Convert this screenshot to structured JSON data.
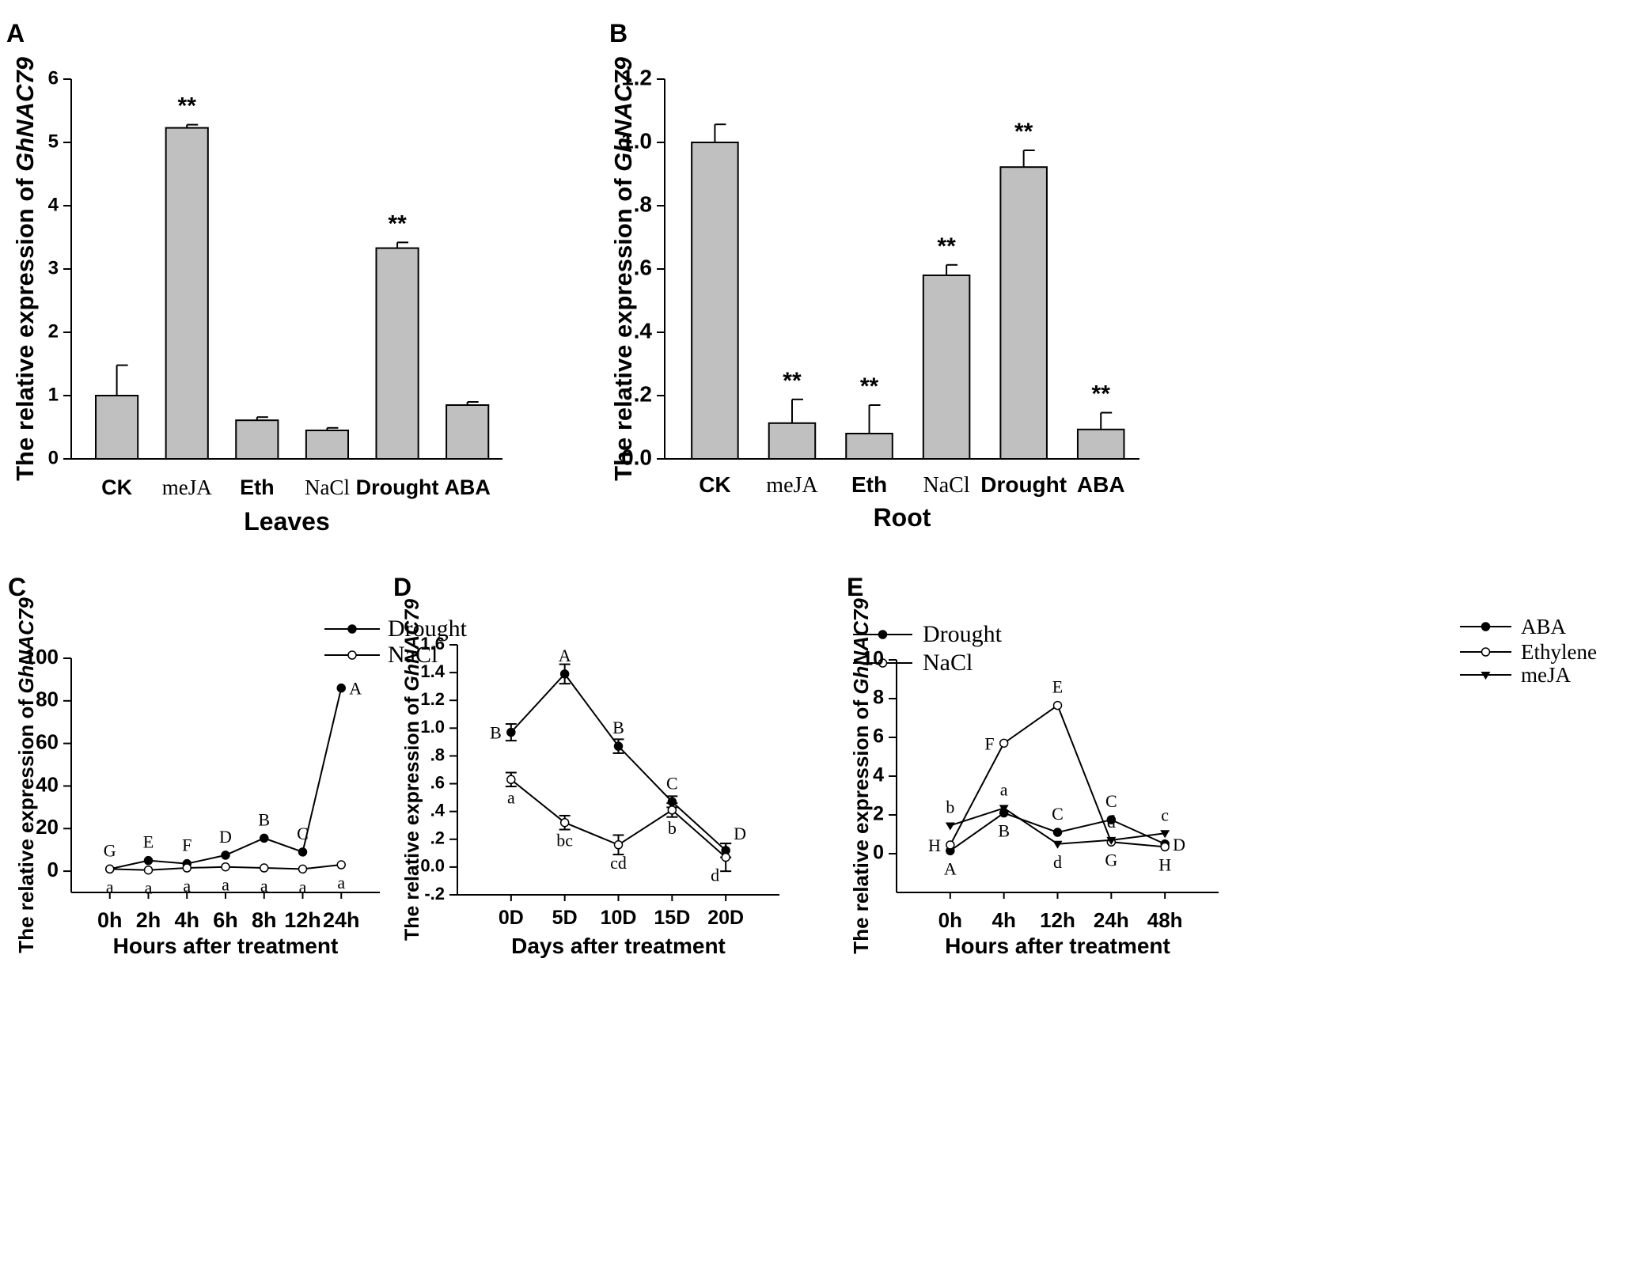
{
  "chart_data": [
    {
      "id": "A",
      "type": "bar",
      "panel_label": "A",
      "title": "",
      "xlabel": "Leaves",
      "ylabel_prefix": "The relative expression of ",
      "ylabel_gene": "GhNAC79",
      "categories": [
        "CK",
        "meJA",
        "Eth",
        "NaCl",
        "Drought",
        "ABA"
      ],
      "category_fonts": [
        "sans",
        "serif",
        "sans",
        "serif",
        "sans",
        "sans"
      ],
      "values": [
        1.0,
        5.23,
        0.61,
        0.45,
        3.33,
        0.85
      ],
      "errors": [
        0.48,
        0.05,
        0.05,
        0.04,
        0.09,
        0.05
      ],
      "annotations": [
        "",
        "**",
        "",
        "",
        "**",
        ""
      ],
      "ylim": [
        0,
        6
      ],
      "yticks": [
        0,
        1,
        2,
        3,
        4,
        5,
        6
      ],
      "ytick_labels": [
        "0",
        "1",
        "2",
        "3",
        "4",
        "5",
        "6"
      ]
    },
    {
      "id": "B",
      "type": "bar",
      "panel_label": "B",
      "title": "",
      "xlabel": "Root",
      "ylabel_prefix": "The relative expression of ",
      "ylabel_gene": "GhNAC79",
      "categories": [
        "CK",
        "meJA",
        "Eth",
        "NaCl",
        "Drought",
        "ABA"
      ],
      "category_fonts": [
        "sans",
        "serif",
        "sans",
        "serif",
        "sans",
        "sans"
      ],
      "values": [
        1.0,
        0.113,
        0.08,
        0.58,
        0.922,
        0.093
      ],
      "errors": [
        0.057,
        0.075,
        0.09,
        0.033,
        0.053,
        0.053
      ],
      "annotations": [
        "",
        "**",
        "**",
        "**",
        "**",
        "**"
      ],
      "ylim": [
        0,
        1.2
      ],
      "yticks": [
        0,
        0.2,
        0.4,
        0.6,
        0.8,
        1.0,
        1.2
      ],
      "ytick_labels": [
        "0.0",
        ".2",
        ".4",
        ".6",
        ".8",
        "1.0",
        "1.2"
      ]
    },
    {
      "id": "C",
      "type": "line",
      "panel_label": "C",
      "xlabel": "Hours after treatment",
      "ylabel_prefix": "The relative expression of ",
      "ylabel_gene": "GhNAC79",
      "categories": [
        "0h",
        "2h",
        "4h",
        "6h",
        "8h",
        "12h",
        "24h"
      ],
      "ylim": [
        -10,
        100
      ],
      "yticks": [
        0,
        20,
        40,
        60,
        80,
        100
      ],
      "ytick_labels": [
        "0",
        "20",
        "40",
        "60",
        "80",
        "100"
      ],
      "legend": [
        "Drought",
        "NaCl"
      ],
      "series": [
        {
          "name": "Drought",
          "marker": "filled-circle",
          "values": [
            1,
            5,
            3.5,
            7.5,
            15.5,
            9,
            86
          ],
          "errors": [
            0,
            0,
            0,
            0,
            0,
            0,
            0
          ],
          "letters": [
            "G",
            "E",
            "F",
            "D",
            "B",
            "C",
            "A"
          ],
          "letter_side": [
            "above",
            "above",
            "above",
            "above",
            "above",
            "above",
            "right"
          ]
        },
        {
          "name": "NaCl",
          "marker": "open-circle",
          "values": [
            1,
            0.5,
            1.5,
            2,
            1.5,
            1,
            3
          ],
          "errors": [
            0,
            0,
            0,
            0,
            0,
            0,
            0
          ],
          "letters": [
            "a",
            "a",
            "a",
            "a",
            "a",
            "a",
            "a"
          ],
          "letter_side": [
            "below",
            "below",
            "below",
            "below",
            "below",
            "below",
            "below"
          ]
        }
      ]
    },
    {
      "id": "D",
      "type": "line",
      "panel_label": "D",
      "xlabel": "Days after treatment",
      "ylabel_prefix": "The relative expression of ",
      "ylabel_gene": "GhNAC79",
      "categories": [
        "0D",
        "5D",
        "10D",
        "15D",
        "20D"
      ],
      "ylim": [
        -0.2,
        1.6
      ],
      "yticks": [
        -0.2,
        0.0,
        0.2,
        0.4,
        0.6,
        0.8,
        1.0,
        1.2,
        1.4,
        1.6
      ],
      "ytick_labels": [
        "-.2",
        "0.0",
        ".2",
        ".4",
        ".6",
        ".8",
        "1.0",
        "1.2",
        "1.4",
        "1.6"
      ],
      "legend": [
        "Drought",
        "NaCl"
      ],
      "series": [
        {
          "name": "Drought",
          "marker": "filled-circle",
          "values": [
            0.97,
            1.39,
            0.87,
            0.47,
            0.12
          ],
          "errors": [
            0.06,
            0.07,
            0.05,
            0.04,
            0.05
          ],
          "letters": [
            "B",
            "A",
            "B",
            "C",
            "D"
          ],
          "letter_side": [
            "left",
            "above",
            "above",
            "above",
            "above-right"
          ]
        },
        {
          "name": "NaCl",
          "marker": "open-circle",
          "values": [
            0.63,
            0.32,
            0.16,
            0.41,
            0.07
          ],
          "errors": [
            0.05,
            0.05,
            0.07,
            0.05,
            0.1
          ],
          "letters": [
            "a",
            "bc",
            "cd",
            "b",
            "d"
          ],
          "letter_side": [
            "below",
            "below",
            "below",
            "below",
            "below-left"
          ]
        }
      ]
    },
    {
      "id": "E",
      "type": "line",
      "panel_label": "E",
      "xlabel": "Hours after treatment",
      "ylabel_prefix": "The relative expression of ",
      "ylabel_gene": "GhNAC79",
      "categories": [
        "0h",
        "4h",
        "12h",
        "24h",
        "48h"
      ],
      "ylim": [
        -2,
        10
      ],
      "yticks": [
        0,
        2,
        4,
        6,
        8,
        10
      ],
      "ytick_labels": [
        "0",
        "2",
        "4",
        "6",
        "8",
        "10"
      ],
      "legend": [
        "ABA",
        "Ethylene",
        "meJA"
      ],
      "series": [
        {
          "name": "ABA",
          "marker": "filled-circle",
          "values": [
            0.15,
            2.1,
            1.1,
            1.75,
            0.5
          ],
          "errors": [
            0,
            0,
            0,
            0,
            0
          ],
          "letters": [
            "A",
            "B",
            "C",
            "C",
            "D"
          ],
          "letter_side": [
            "below",
            "below",
            "above",
            "above",
            "right"
          ]
        },
        {
          "name": "Ethylene",
          "marker": "open-circle",
          "values": [
            0.45,
            5.7,
            7.65,
            0.6,
            0.35
          ],
          "errors": [
            0,
            0,
            0,
            0,
            0
          ],
          "letters": [
            "H",
            "F",
            "E",
            "G",
            "H"
          ],
          "letter_side": [
            "left",
            "left",
            "above",
            "below",
            "below"
          ]
        },
        {
          "name": "meJA",
          "marker": "filled-triangle-down",
          "values": [
            1.45,
            2.35,
            0.5,
            0.7,
            1.05
          ],
          "errors": [
            0,
            0,
            0,
            0,
            0
          ],
          "letters": [
            "b",
            "a",
            "d",
            "d",
            "c"
          ],
          "letter_side": [
            "above",
            "above",
            "below",
            "above",
            "above"
          ]
        }
      ]
    }
  ]
}
